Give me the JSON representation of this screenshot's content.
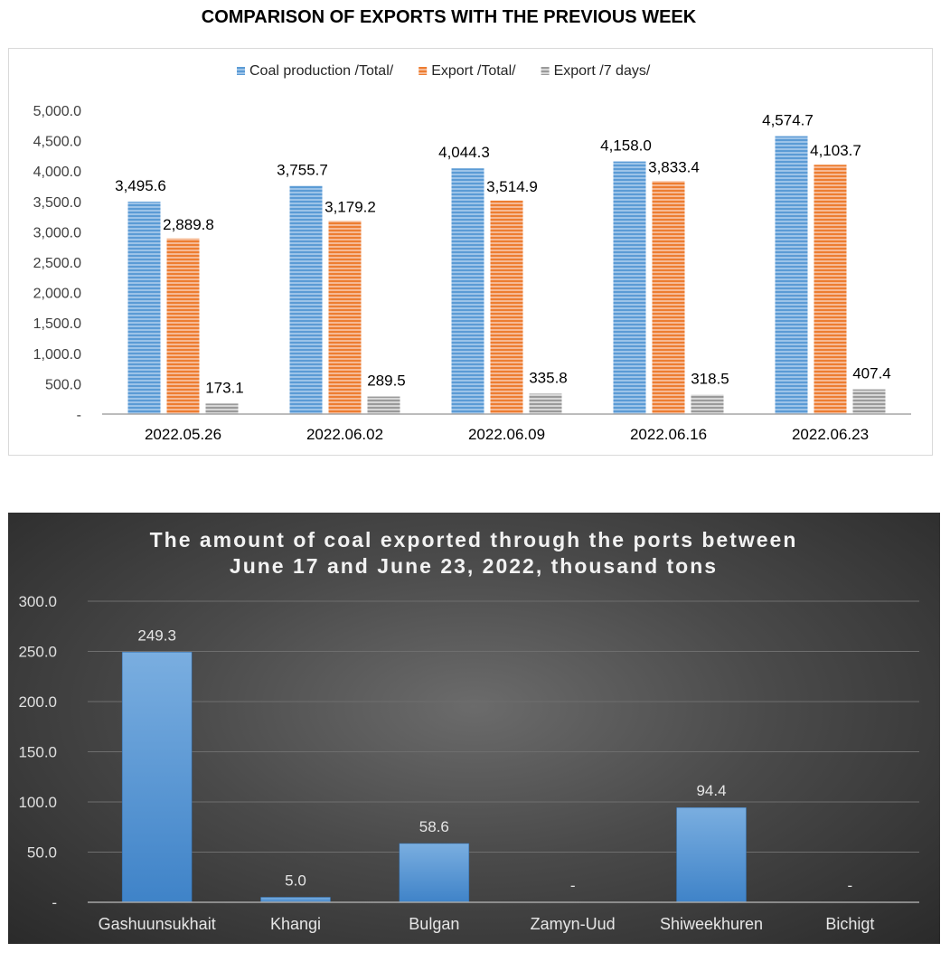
{
  "page_title": "COMPARISON OF EXPORTS WITH THE PREVIOUS WEEK",
  "chart_data": [
    {
      "type": "bar",
      "title": "COMPARISON OF EXPORTS WITH THE PREVIOUS WEEK",
      "categories": [
        "2022.05.26",
        "2022.06.02",
        "2022.06.09",
        "2022.06.16",
        "2022.06.23"
      ],
      "series": [
        {
          "name": "Coal production /Total/",
          "color": "#5b9bd5",
          "values": [
            3495.6,
            3755.7,
            4044.3,
            4158.0,
            4574.7
          ],
          "labels": [
            "3,495.6",
            "3,755.7",
            "4,044.3",
            "4,158.0",
            "4,574.7"
          ]
        },
        {
          "name": "Export /Total/",
          "color": "#ed7d31",
          "values": [
            2889.8,
            3179.2,
            3514.9,
            3833.4,
            4103.7
          ],
          "labels": [
            "2,889.8",
            "3,179.2",
            "3,514.9",
            "3,833.4",
            "4,103.7"
          ]
        },
        {
          "name": "Export /7 days/",
          "color": "#a5a5a5",
          "values": [
            173.1,
            289.5,
            335.8,
            318.5,
            407.4
          ],
          "labels": [
            "173.1",
            "289.5",
            "335.8",
            "318.5",
            "407.4"
          ]
        }
      ],
      "ylim": [
        0,
        5000
      ],
      "yticks": [
        "-",
        "500.0",
        "1,000.0",
        "1,500.0",
        "2,000.0",
        "2,500.0",
        "3,000.0",
        "3,500.0",
        "4,000.0",
        "4,500.0",
        "5,000.0"
      ],
      "legend_position": "top",
      "xlabel": "",
      "ylabel": ""
    },
    {
      "type": "bar",
      "title_lines": [
        "The amount of coal exported through the ports between",
        "June 17 and June 23, 2022, thousand tons"
      ],
      "categories": [
        "Gashuunsukhait",
        "Khangi",
        "Bulgan",
        "Zamyn-Uud",
        "Shiweekhuren",
        "Bichigt"
      ],
      "values": [
        249.3,
        5.0,
        58.6,
        0,
        94.4,
        0
      ],
      "labels": [
        "249.3",
        "5.0",
        "58.6",
        "-",
        "94.4",
        "-"
      ],
      "ylim": [
        0,
        300
      ],
      "yticks": [
        "-",
        "50.0",
        "100.0",
        "150.0",
        "200.0",
        "250.0",
        "300.0"
      ],
      "bar_color": "#5b9bd5",
      "grid": true,
      "xlabel": "",
      "ylabel": ""
    }
  ]
}
